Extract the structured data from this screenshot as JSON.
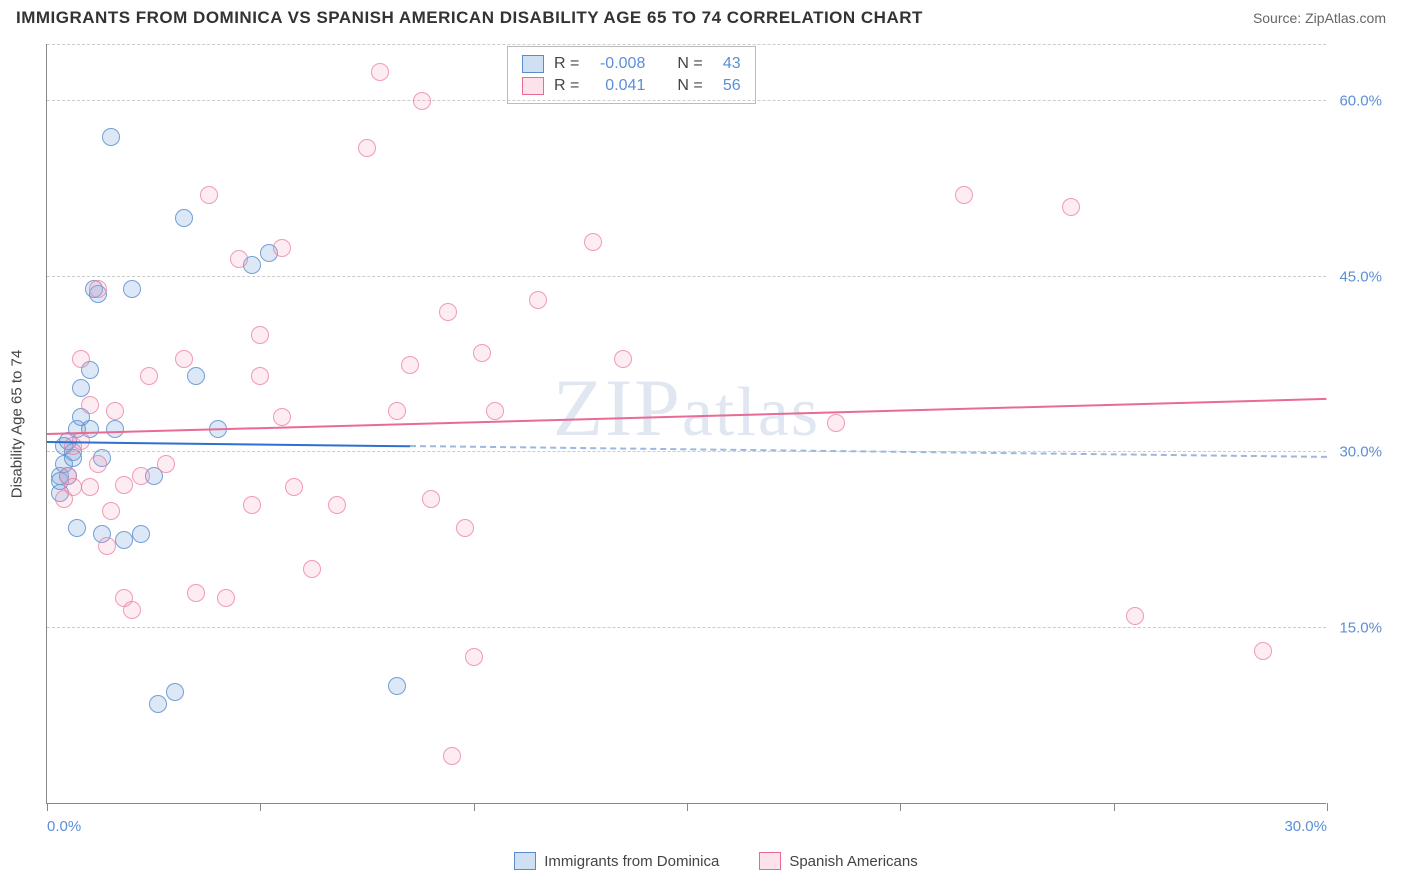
{
  "title": "IMMIGRANTS FROM DOMINICA VS SPANISH AMERICAN DISABILITY AGE 65 TO 74 CORRELATION CHART",
  "source": "Source: ZipAtlas.com",
  "y_axis_label": "Disability Age 65 to 74",
  "watermark": "ZIPatlas",
  "chart": {
    "type": "scatter",
    "xlim": [
      0,
      30
    ],
    "ylim": [
      0,
      65
    ],
    "x_ticks": [
      0,
      5,
      10,
      15,
      20,
      25,
      30
    ],
    "x_tick_labels": {
      "0": "0.0%",
      "30": "30.0%"
    },
    "y_gridlines": [
      15,
      30,
      45,
      60
    ],
    "y_tick_labels": {
      "15": "15.0%",
      "30": "30.0%",
      "45": "45.0%",
      "60": "60.0%"
    },
    "background_color": "#ffffff",
    "grid_color": "#cccccc",
    "axis_color": "#888888",
    "tick_label_color": "#5b8fd6",
    "marker_radius": 9,
    "series": [
      {
        "name": "Immigrants from Dominica",
        "color_fill": "rgba(120,165,220,0.25)",
        "color_stroke": "#5a8ccd",
        "R": "-0.008",
        "N": "43",
        "trend": {
          "y_start": 30.8,
          "y_end": 29.5,
          "solid_until_x": 8.5
        },
        "points": [
          [
            0.3,
            28
          ],
          [
            0.3,
            26.5
          ],
          [
            0.3,
            27.5
          ],
          [
            0.4,
            30.5
          ],
          [
            0.4,
            29
          ],
          [
            0.5,
            31
          ],
          [
            0.5,
            28
          ],
          [
            0.6,
            30
          ],
          [
            0.6,
            29.5
          ],
          [
            0.7,
            32
          ],
          [
            0.7,
            23.5
          ],
          [
            0.8,
            35.5
          ],
          [
            0.8,
            33
          ],
          [
            1.0,
            37
          ],
          [
            1.0,
            32
          ],
          [
            1.1,
            44
          ],
          [
            1.2,
            43.5
          ],
          [
            1.3,
            29.5
          ],
          [
            1.3,
            23
          ],
          [
            1.5,
            57
          ],
          [
            1.6,
            32
          ],
          [
            1.8,
            22.5
          ],
          [
            2.0,
            44
          ],
          [
            2.2,
            23
          ],
          [
            2.5,
            28
          ],
          [
            2.6,
            8.5
          ],
          [
            3.0,
            9.5
          ],
          [
            3.2,
            50
          ],
          [
            3.5,
            36.5
          ],
          [
            4.0,
            32
          ],
          [
            4.8,
            46
          ],
          [
            5.2,
            47
          ],
          [
            8.2,
            10
          ]
        ]
      },
      {
        "name": "Spanish Americans",
        "color_fill": "rgba(245,160,185,0.2)",
        "color_stroke": "#e86b95",
        "R": "0.041",
        "N": "56",
        "trend": {
          "y_start": 31.5,
          "y_end": 34.5
        },
        "points": [
          [
            0.4,
            26
          ],
          [
            0.5,
            28
          ],
          [
            0.6,
            27
          ],
          [
            0.6,
            30.5
          ],
          [
            0.8,
            38
          ],
          [
            0.8,
            31
          ],
          [
            1.0,
            34
          ],
          [
            1.0,
            27
          ],
          [
            1.2,
            44
          ],
          [
            1.2,
            29
          ],
          [
            1.4,
            22
          ],
          [
            1.5,
            25
          ],
          [
            1.6,
            33.5
          ],
          [
            1.8,
            27.2
          ],
          [
            1.8,
            17.5
          ],
          [
            2.0,
            16.5
          ],
          [
            2.2,
            28
          ],
          [
            2.4,
            36.5
          ],
          [
            2.8,
            29
          ],
          [
            3.2,
            38
          ],
          [
            3.5,
            18
          ],
          [
            3.8,
            52
          ],
          [
            4.2,
            17.5
          ],
          [
            4.5,
            46.5
          ],
          [
            4.8,
            25.5
          ],
          [
            5.0,
            40
          ],
          [
            5.0,
            36.5
          ],
          [
            5.5,
            47.5
          ],
          [
            5.5,
            33
          ],
          [
            5.8,
            27
          ],
          [
            6.2,
            20
          ],
          [
            6.8,
            25.5
          ],
          [
            7.5,
            56
          ],
          [
            7.8,
            62.5
          ],
          [
            8.2,
            33.5
          ],
          [
            8.5,
            37.5
          ],
          [
            8.8,
            60
          ],
          [
            9.0,
            26
          ],
          [
            9.4,
            42
          ],
          [
            9.5,
            4
          ],
          [
            9.8,
            23.5
          ],
          [
            10.0,
            12.5
          ],
          [
            10.2,
            38.5
          ],
          [
            10.5,
            33.5
          ],
          [
            11.5,
            43
          ],
          [
            12.8,
            48
          ],
          [
            13.5,
            38
          ],
          [
            18.5,
            32.5
          ],
          [
            21.5,
            52
          ],
          [
            24,
            51
          ],
          [
            25.5,
            16
          ],
          [
            28.5,
            13
          ]
        ]
      }
    ]
  },
  "legend_top": {
    "r_label": "R =",
    "n_label": "N ="
  },
  "legend_bottom": [
    {
      "swatch": "blue",
      "label": "Immigrants from Dominica"
    },
    {
      "swatch": "pink",
      "label": "Spanish Americans"
    }
  ]
}
